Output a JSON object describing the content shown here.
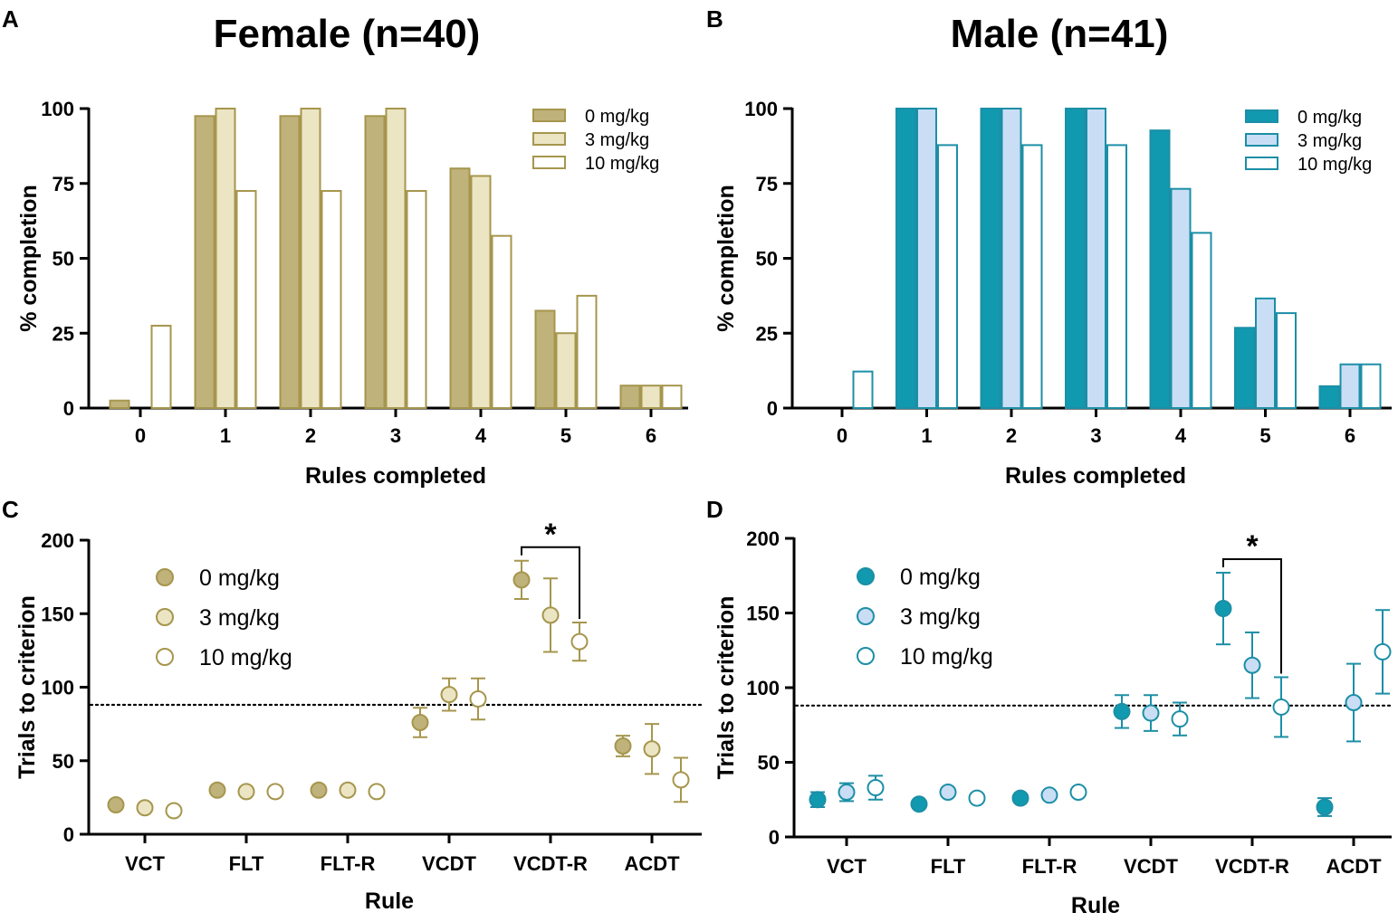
{
  "colors": {
    "female_0": "#bfb27a",
    "female_3": "#ebe5c4",
    "female_10": "#ffffff",
    "female_edge": "#a6964d",
    "male_0": "#1199b0",
    "male_3": "#c9def4",
    "male_10": "#ffffff",
    "male_edge": "#1c8fa6",
    "axis": "#000000"
  },
  "chart_data": [
    {
      "panel": "A",
      "type": "bar",
      "title": "Female (n=40)",
      "xlabel": "Rules completed",
      "ylabel": "% completion",
      "ylim": [
        0,
        100
      ],
      "yticks": [
        0,
        25,
        50,
        75,
        100
      ],
      "categories": [
        "0",
        "1",
        "2",
        "3",
        "4",
        "5",
        "6"
      ],
      "series": [
        {
          "name": "0 mg/kg",
          "values": [
            2.5,
            97.5,
            97.5,
            97.5,
            80,
            32.5,
            7.5
          ]
        },
        {
          "name": "3 mg/kg",
          "values": [
            0,
            100,
            100,
            100,
            77.5,
            25,
            7.5
          ]
        },
        {
          "name": "10 mg/kg",
          "values": [
            27.5,
            72.5,
            72.5,
            72.5,
            57.5,
            37.5,
            7.5
          ]
        }
      ],
      "legend_position": "top-right"
    },
    {
      "panel": "B",
      "type": "bar",
      "title": "Male (n=41)",
      "xlabel": "Rules completed",
      "ylabel": "% completion",
      "ylim": [
        0,
        100
      ],
      "yticks": [
        0,
        25,
        50,
        75,
        100
      ],
      "categories": [
        "0",
        "1",
        "2",
        "3",
        "4",
        "5",
        "6"
      ],
      "series": [
        {
          "name": "0 mg/kg",
          "values": [
            0,
            100,
            100,
            100,
            92.7,
            26.8,
            7.3
          ]
        },
        {
          "name": "3 mg/kg",
          "values": [
            0,
            100,
            100,
            100,
            73.2,
            36.6,
            14.6
          ]
        },
        {
          "name": "10 mg/kg",
          "values": [
            12.2,
            87.8,
            87.8,
            87.8,
            58.5,
            31.7,
            14.6
          ]
        }
      ],
      "legend_position": "top-right"
    },
    {
      "panel": "C",
      "type": "scatter",
      "xlabel": "Rule",
      "ylabel": "Trials to criterion",
      "ylim": [
        0,
        200
      ],
      "yticks": [
        0,
        50,
        100,
        150,
        200
      ],
      "categories": [
        "VCT",
        "FLT",
        "FLT-R",
        "VCDT",
        "VCDT-R",
        "ACDT"
      ],
      "series": [
        {
          "name": "0 mg/kg",
          "values": [
            20,
            30,
            30,
            76,
            173,
            60
          ],
          "errors": [
            null,
            null,
            null,
            10,
            13,
            7
          ]
        },
        {
          "name": "3 mg/kg",
          "values": [
            18,
            29,
            30,
            95,
            149,
            58
          ],
          "errors": [
            null,
            null,
            null,
            11,
            25,
            17
          ]
        },
        {
          "name": "10 mg/kg",
          "values": [
            16,
            29,
            29,
            92,
            131,
            37
          ],
          "errors": [
            null,
            null,
            null,
            14,
            13,
            15
          ]
        }
      ],
      "reference_line": 88,
      "significance": {
        "category": "VCDT-R",
        "from": "0 mg/kg",
        "to": "10 mg/kg",
        "label": "*"
      },
      "legend_position": "top-left"
    },
    {
      "panel": "D",
      "type": "scatter",
      "xlabel": "Rule",
      "ylabel": "Trials to criterion",
      "ylim": [
        0,
        200
      ],
      "yticks": [
        0,
        50,
        100,
        150,
        200
      ],
      "categories": [
        "VCT",
        "FLT",
        "FLT-R",
        "VCDT",
        "VCDT-R",
        "ACDT"
      ],
      "series": [
        {
          "name": "0 mg/kg",
          "values": [
            25,
            22,
            26,
            84,
            153,
            20
          ],
          "errors": [
            5,
            null,
            null,
            11,
            24,
            6
          ]
        },
        {
          "name": "3 mg/kg",
          "values": [
            30,
            30,
            28,
            83,
            115,
            90
          ],
          "errors": [
            6,
            null,
            null,
            12,
            22,
            26
          ]
        },
        {
          "name": "10 mg/kg",
          "values": [
            33,
            26,
            30,
            79,
            87,
            124
          ],
          "errors": [
            8,
            null,
            null,
            11,
            20,
            28
          ]
        }
      ],
      "reference_line": 88,
      "significance": {
        "category": "VCDT-R",
        "from": "0 mg/kg",
        "to": "10 mg/kg",
        "label": "*"
      },
      "legend_position": "top-left"
    }
  ]
}
